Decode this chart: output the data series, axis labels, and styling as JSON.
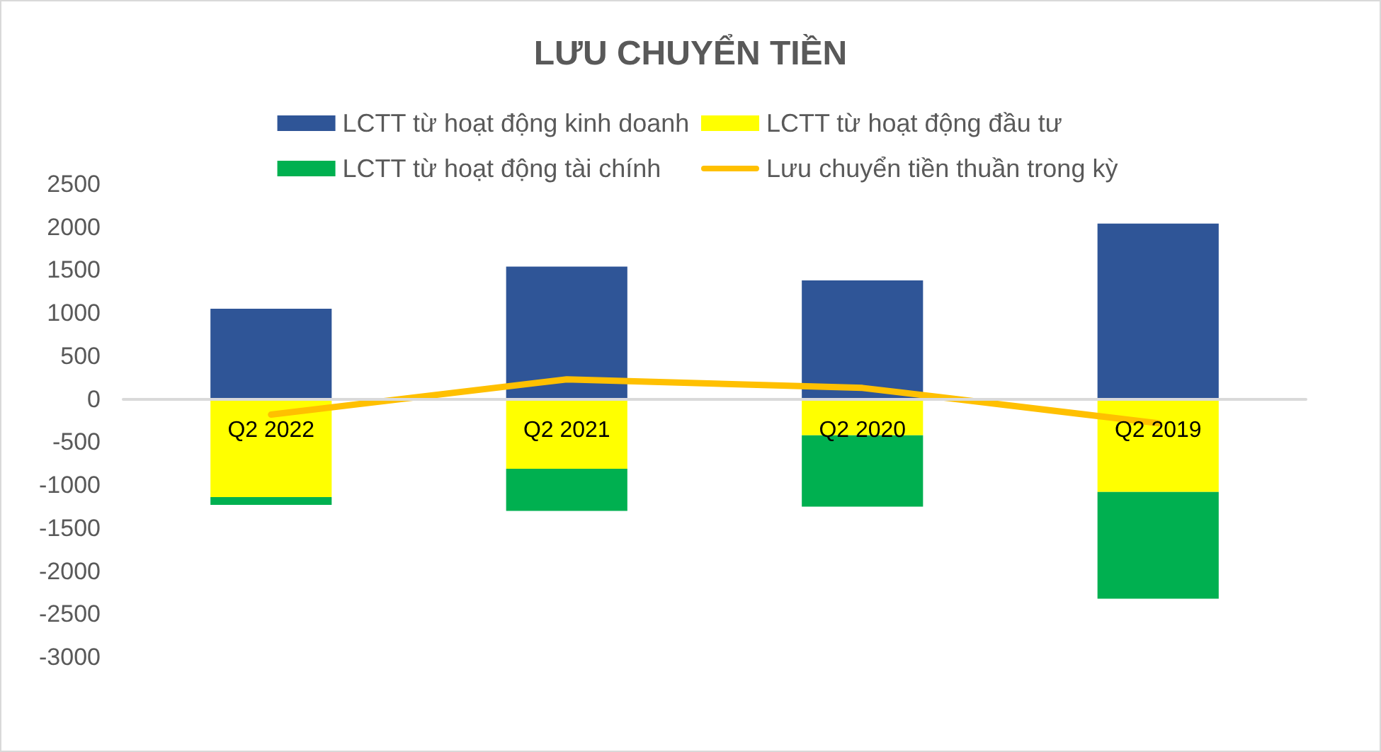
{
  "chart_data": {
    "type": "bar",
    "title": "LƯU CHUYỂN TIỀN",
    "categories": [
      "Q2 2022",
      "Q2 2021",
      "Q2 2020",
      "Q2 2019"
    ],
    "stacked": true,
    "series": [
      {
        "name": "LCTT từ hoạt động kinh doanh",
        "color": "#2f5597",
        "values": [
          1050,
          1540,
          1380,
          2040
        ]
      },
      {
        "name": "LCTT từ hoạt động đầu tư",
        "color": "#ffff00",
        "values": [
          -1140,
          -810,
          -420,
          -1080
        ]
      },
      {
        "name": "LCTT từ hoạt động tài chính",
        "color": "#00b050",
        "values": [
          -90,
          -490,
          -830,
          -1240
        ]
      },
      {
        "name": "Lưu chuyển tiền thuần trong kỳ",
        "type": "line",
        "color": "#ffc000",
        "values": [
          -180,
          230,
          130,
          -280
        ]
      }
    ],
    "ylim": [
      -3000,
      2500
    ],
    "yticks": [
      -3000,
      -2500,
      -2000,
      -1500,
      -1000,
      -500,
      0,
      500,
      1000,
      1500,
      2000,
      2500
    ],
    "grid": false,
    "legend": "top",
    "marker": "none",
    "line_style": "solid"
  }
}
